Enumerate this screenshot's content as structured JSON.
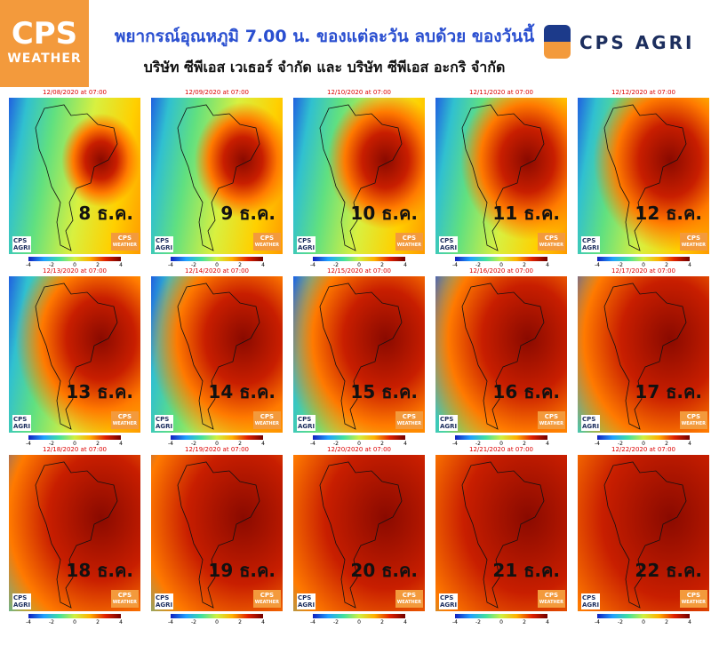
{
  "header": {
    "title": "พยากรณ์อุณหภูมิ 7.00 น. ของแต่ละวัน ลบด้วย ของวันนี้",
    "subtitle": "บริษัท ซีพีเอส เวเธอร์ จำกัด และ บริษัท ซีพีเอส อะกริ จำกัด",
    "logo_left": [
      "CPS",
      "WEATHER"
    ],
    "logo_right": "CPS AGRI"
  },
  "panels": [
    {
      "date": "12/08/2020 at 07:00",
      "day": "8 ธ.ค."
    },
    {
      "date": "12/09/2020 at 07:00",
      "day": "9 ธ.ค."
    },
    {
      "date": "12/10/2020 at 07:00",
      "day": "10 ธ.ค."
    },
    {
      "date": "12/11/2020 at 07:00",
      "day": "11 ธ.ค."
    },
    {
      "date": "12/12/2020 at 07:00",
      "day": "12 ธ.ค."
    },
    {
      "date": "12/13/2020 at 07:00",
      "day": "13 ธ.ค."
    },
    {
      "date": "12/14/2020 at 07:00",
      "day": "14 ธ.ค."
    },
    {
      "date": "12/15/2020 at 07:00",
      "day": "15 ธ.ค."
    },
    {
      "date": "12/16/2020 at 07:00",
      "day": "16 ธ.ค."
    },
    {
      "date": "12/17/2020 at 07:00",
      "day": "17 ธ.ค."
    },
    {
      "date": "12/18/2020 at 07:00",
      "day": "18 ธ.ค."
    },
    {
      "date": "12/19/2020 at 07:00",
      "day": "19 ธ.ค."
    },
    {
      "date": "12/20/2020 at 07:00",
      "day": "20 ธ.ค."
    },
    {
      "date": "12/21/2020 at 07:00",
      "day": "21 ธ.ค."
    },
    {
      "date": "12/22/2020 at 07:00",
      "day": "22 ธ.ค."
    }
  ],
  "colorbar_ticks": [
    -4,
    -2,
    0,
    2,
    4
  ],
  "panel_logos": {
    "left": [
      "CPS",
      "AGRI"
    ],
    "right": [
      "CPS",
      "WEATHER"
    ]
  }
}
